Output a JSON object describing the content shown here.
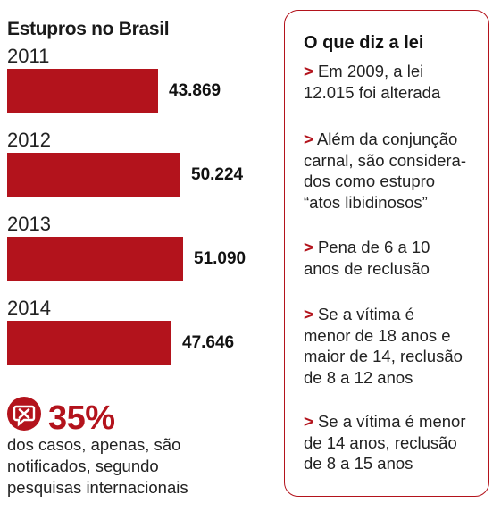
{
  "chart_data": {
    "type": "bar",
    "orientation": "horizontal",
    "title": "Estupros no Brasil",
    "categories": [
      "2011",
      "2012",
      "2013",
      "2014"
    ],
    "values": [
      43869,
      50224,
      51090,
      47646
    ],
    "value_labels": [
      "43.869",
      "50.224",
      "51.090",
      "47.646"
    ],
    "xlim": [
      0,
      51090
    ],
    "grid": false,
    "legend": "none",
    "bar_color": "#b3131c"
  },
  "stat": {
    "icon": "no-notification-icon",
    "value": "35%",
    "lines": [
      "dos casos, apenas, são",
      "notificados, segundo",
      "pesquisas internacionais"
    ]
  },
  "law": {
    "title": "O que diz a lei",
    "arrow": ">",
    "items": [
      [
        "Em 2009, a lei",
        "12.015 foi alterada"
      ],
      [
        "Além da conjunção",
        "carnal, são considera-",
        "dos como estupro",
        "“atos libidinosos”"
      ],
      [
        "Pena de 6 a 10",
        "anos de reclusão"
      ],
      [
        "Se a vítima é",
        "menor de 18 anos e",
        "maior de 14, reclusão",
        "de 8 a 12 anos"
      ],
      [
        "Se a vítima é menor",
        "de 14 anos, reclusão",
        "de 8 a 15 anos"
      ]
    ]
  },
  "colors": {
    "accent": "#b3131c",
    "text": "#1a1a1a"
  }
}
